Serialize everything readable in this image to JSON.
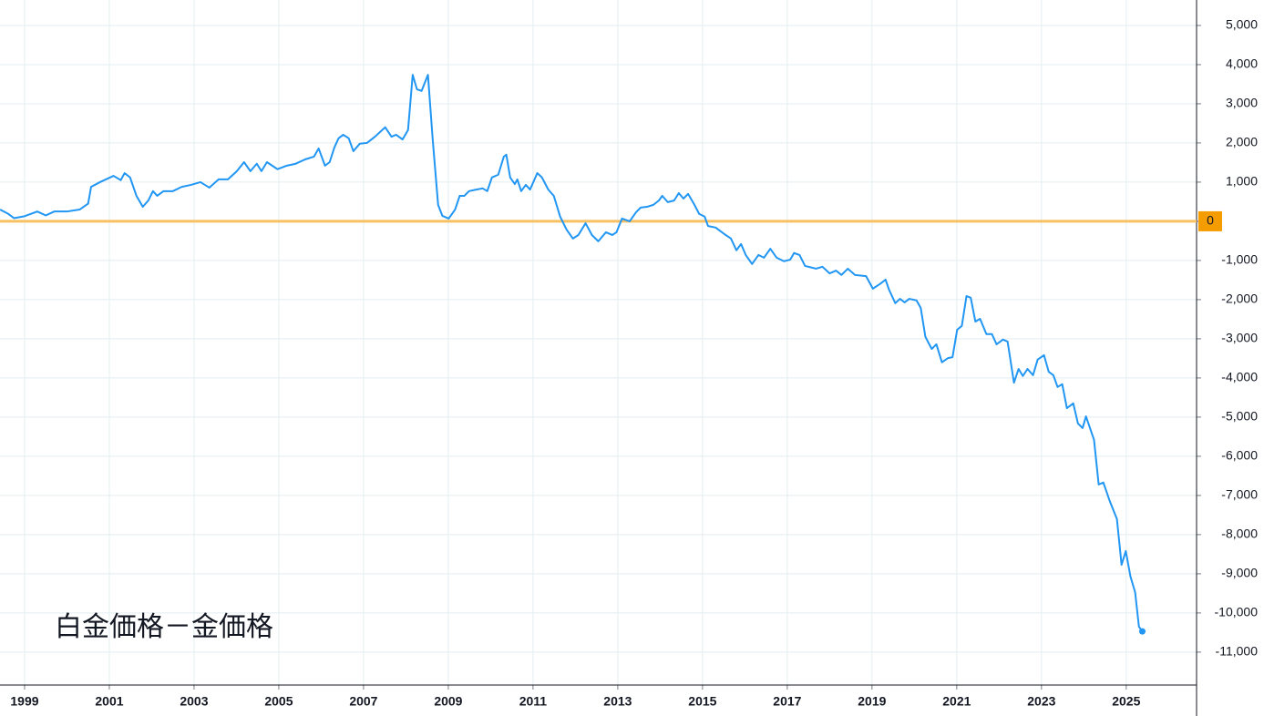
{
  "chart_data": {
    "type": "line",
    "annotation": "白金価格－金価格",
    "xlim": [
      1998.42,
      2026.66
    ],
    "xticks": [
      1999,
      2001,
      2003,
      2005,
      2007,
      2009,
      2011,
      2013,
      2015,
      2017,
      2019,
      2021,
      2023,
      2025
    ],
    "ylim": [
      -11840,
      5650
    ],
    "yticks": [
      {
        "value": 5000,
        "label": "5,000"
      },
      {
        "value": 4000,
        "label": "4,000"
      },
      {
        "value": 3000,
        "label": "3,000"
      },
      {
        "value": 2000,
        "label": "2,000"
      },
      {
        "value": 1000,
        "label": "1,000"
      },
      0,
      {
        "value": -1000,
        "label": "-1,000"
      },
      {
        "value": -2000,
        "label": "-2,000"
      },
      {
        "value": -3000,
        "label": "-3,000"
      },
      {
        "value": -4000,
        "label": "-4,000"
      },
      {
        "value": -5000,
        "label": "-5,000"
      },
      {
        "value": -6000,
        "label": "-6,000"
      },
      {
        "value": -7000,
        "label": "-7,000"
      },
      {
        "value": -8000,
        "label": "-8,000"
      },
      {
        "value": -9000,
        "label": "-9,000"
      },
      {
        "value": -10000,
        "label": "-10,000"
      },
      {
        "value": -11000,
        "label": "-11,000"
      }
    ],
    "grid": true,
    "reference_line": {
      "value": 0,
      "color": "#f7c063",
      "label_color": "#f59c00"
    },
    "color": "#2196f3",
    "end_marker": true,
    "x": [
      1998.42,
      1998.6,
      1998.75,
      1999.0,
      1999.3,
      1999.5,
      1999.7,
      2000.0,
      2000.3,
      2000.5,
      2000.57,
      2000.78,
      2001.1,
      2001.27,
      2001.36,
      2001.49,
      2001.64,
      2001.79,
      2001.92,
      2002.03,
      2002.13,
      2002.28,
      2002.5,
      2002.71,
      2002.93,
      2003.15,
      2003.36,
      2003.58,
      2003.8,
      2004.01,
      2004.18,
      2004.33,
      2004.48,
      2004.59,
      2004.72,
      2004.97,
      2005.19,
      2005.4,
      2005.62,
      2005.83,
      2005.94,
      2006.09,
      2006.2,
      2006.31,
      2006.41,
      2006.52,
      2006.65,
      2006.76,
      2006.91,
      2007.08,
      2007.27,
      2007.51,
      2007.66,
      2007.77,
      2007.92,
      2008.05,
      2008.16,
      2008.26,
      2008.37,
      2008.52,
      2008.63,
      2008.76,
      2008.86,
      2009.01,
      2009.16,
      2009.27,
      2009.38,
      2009.49,
      2009.66,
      2009.81,
      2009.92,
      2010.03,
      2010.18,
      2010.31,
      2010.37,
      2010.46,
      2010.57,
      2010.63,
      2010.72,
      2010.83,
      2010.93,
      2011.1,
      2011.21,
      2011.36,
      2011.49,
      2011.64,
      2011.79,
      2011.94,
      2012.07,
      2012.24,
      2012.39,
      2012.54,
      2012.72,
      2012.87,
      2012.97,
      2013.1,
      2013.28,
      2013.43,
      2013.54,
      2013.69,
      2013.84,
      2013.97,
      2014.05,
      2014.18,
      2014.33,
      2014.44,
      2014.55,
      2014.66,
      2014.81,
      2014.92,
      2015.05,
      2015.13,
      2015.31,
      2015.52,
      2015.67,
      2015.8,
      2015.91,
      2016.02,
      2016.17,
      2016.32,
      2016.45,
      2016.6,
      2016.75,
      2016.92,
      2017.07,
      2017.16,
      2017.29,
      2017.42,
      2017.68,
      2017.83,
      2018.0,
      2018.15,
      2018.28,
      2018.43,
      2018.6,
      2018.86,
      2019.02,
      2019.19,
      2019.32,
      2019.4,
      2019.55,
      2019.66,
      2019.77,
      2019.88,
      2020.05,
      2020.15,
      2020.26,
      2020.41,
      2020.52,
      2020.65,
      2020.8,
      2020.9,
      2021.01,
      2021.12,
      2021.23,
      2021.33,
      2021.44,
      2021.55,
      2021.7,
      2021.83,
      2021.94,
      2022.09,
      2022.2,
      2022.35,
      2022.46,
      2022.56,
      2022.67,
      2022.8,
      2022.91,
      2023.06,
      2023.17,
      2023.28,
      2023.38,
      2023.49,
      2023.6,
      2023.75,
      2023.86,
      2023.97,
      2024.05,
      2024.24,
      2024.35,
      2024.46,
      2024.61,
      2024.78,
      2024.89,
      2024.99,
      2025.1,
      2025.21,
      2025.3,
      2025.38
    ],
    "values": [
      300,
      200,
      80,
      130,
      250,
      150,
      250,
      250,
      300,
      450,
      880,
      1000,
      1160,
      1050,
      1230,
      1120,
      650,
      370,
      530,
      770,
      650,
      770,
      770,
      880,
      930,
      1000,
      860,
      1070,
      1070,
      1280,
      1510,
      1280,
      1470,
      1280,
      1510,
      1330,
      1420,
      1470,
      1580,
      1650,
      1860,
      1420,
      1510,
      1880,
      2120,
      2210,
      2120,
      1790,
      1980,
      2000,
      2160,
      2400,
      2160,
      2210,
      2090,
      2330,
      3740,
      3370,
      3330,
      3740,
      2120,
      420,
      140,
      70,
      300,
      650,
      650,
      770,
      810,
      840,
      770,
      1120,
      1190,
      1650,
      1700,
      1120,
      950,
      1070,
      770,
      930,
      810,
      1230,
      1120,
      810,
      650,
      120,
      -210,
      -440,
      -350,
      -50,
      -350,
      -510,
      -280,
      -350,
      -280,
      70,
      0,
      230,
      350,
      370,
      420,
      530,
      650,
      490,
      530,
      720,
      580,
      700,
      420,
      190,
      120,
      -120,
      -160,
      -330,
      -440,
      -740,
      -580,
      -860,
      -1090,
      -860,
      -930,
      -700,
      -930,
      -1020,
      -980,
      -810,
      -860,
      -1140,
      -1210,
      -1160,
      -1330,
      -1260,
      -1370,
      -1210,
      -1370,
      -1400,
      -1720,
      -1600,
      -1490,
      -1740,
      -2090,
      -1980,
      -2070,
      -1980,
      -2020,
      -2210,
      -2950,
      -3260,
      -3140,
      -3600,
      -3490,
      -3470,
      -2770,
      -2670,
      -1910,
      -1950,
      -2560,
      -2490,
      -2880,
      -2880,
      -3140,
      -3020,
      -3070,
      -4120,
      -3770,
      -3950,
      -3770,
      -3930,
      -3530,
      -3420,
      -3840,
      -3930,
      -4230,
      -4160,
      -4770,
      -4650,
      -5160,
      -5280,
      -4980,
      -5580,
      -6720,
      -6670,
      -7140,
      -7600,
      -8770,
      -8420,
      -9070,
      -9470,
      -10350,
      -10470
    ]
  }
}
